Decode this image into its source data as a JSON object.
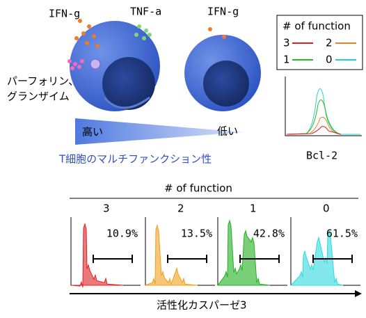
{
  "cells": {
    "left_ifn": "IFN-g",
    "tnf": "TNF-a",
    "right_ifn": "IFN-g",
    "perforin_line1": "パーフォリン、",
    "perforin_line2": "グランザイム"
  },
  "gradient": {
    "high": "高い",
    "low": "低い",
    "caption": "T細胞のマルチファンクション性"
  },
  "legend": {
    "title": "# of function",
    "items": [
      "3",
      "2",
      "1",
      "0"
    ]
  },
  "bcl_axis": "Bcl-2",
  "panels": {
    "title": "# of function",
    "labels": [
      "3",
      "2",
      "1",
      "0"
    ],
    "percents": [
      "10.9%",
      "13.5%",
      "42.8%",
      "61.5%"
    ],
    "axis": "活性化カスパーゼ3"
  }
}
